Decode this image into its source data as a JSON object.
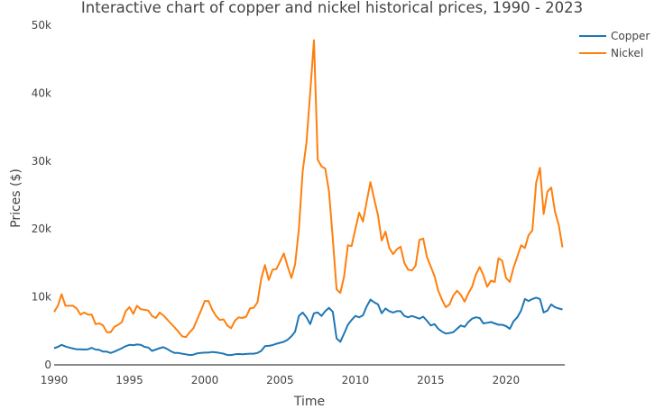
{
  "chart_data": {
    "type": "line",
    "title": "Interactive chart of copper and nickel historical prices, 1990 - 2023",
    "xlabel": "Time",
    "ylabel": "Prices ($)",
    "xlim": [
      1990,
      2023.9
    ],
    "ylim": [
      0,
      50000
    ],
    "x_ticks": [
      1990,
      1995,
      2000,
      2005,
      2010,
      2015,
      2020
    ],
    "x_tick_labels": [
      "1990",
      "1995",
      "2000",
      "2005",
      "2010",
      "2015",
      "2020"
    ],
    "y_ticks": [
      0,
      10000,
      20000,
      30000,
      40000,
      50000
    ],
    "y_tick_labels": [
      "0",
      "10k",
      "20k",
      "30k",
      "40k",
      "50k"
    ],
    "grid": false,
    "legend_position": "top-right",
    "series": [
      {
        "name": "Copper",
        "color": "#1f77b4",
        "points": [
          [
            1990.0,
            2450
          ],
          [
            1990.25,
            2650
          ],
          [
            1990.5,
            2950
          ],
          [
            1990.75,
            2700
          ],
          [
            1991.0,
            2550
          ],
          [
            1991.25,
            2400
          ],
          [
            1991.5,
            2300
          ],
          [
            1991.75,
            2300
          ],
          [
            1992.0,
            2250
          ],
          [
            1992.25,
            2300
          ],
          [
            1992.5,
            2500
          ],
          [
            1992.75,
            2250
          ],
          [
            1993.0,
            2200
          ],
          [
            1993.25,
            1950
          ],
          [
            1993.5,
            1950
          ],
          [
            1993.75,
            1750
          ],
          [
            1994.0,
            1950
          ],
          [
            1994.25,
            2200
          ],
          [
            1994.5,
            2450
          ],
          [
            1994.75,
            2750
          ],
          [
            1995.0,
            2950
          ],
          [
            1995.25,
            2900
          ],
          [
            1995.5,
            3000
          ],
          [
            1995.75,
            2950
          ],
          [
            1996.0,
            2650
          ],
          [
            1996.25,
            2550
          ],
          [
            1996.5,
            2050
          ],
          [
            1996.75,
            2250
          ],
          [
            1997.0,
            2450
          ],
          [
            1997.25,
            2600
          ],
          [
            1997.5,
            2350
          ],
          [
            1997.75,
            2000
          ],
          [
            1998.0,
            1750
          ],
          [
            1998.25,
            1750
          ],
          [
            1998.5,
            1650
          ],
          [
            1998.75,
            1550
          ],
          [
            1999.0,
            1450
          ],
          [
            1999.25,
            1500
          ],
          [
            1999.5,
            1700
          ],
          [
            1999.75,
            1750
          ],
          [
            2000.0,
            1800
          ],
          [
            2000.25,
            1800
          ],
          [
            2000.5,
            1900
          ],
          [
            2000.75,
            1850
          ],
          [
            2001.0,
            1750
          ],
          [
            2001.25,
            1650
          ],
          [
            2001.5,
            1450
          ],
          [
            2001.75,
            1450
          ],
          [
            2002.0,
            1550
          ],
          [
            2002.25,
            1600
          ],
          [
            2002.5,
            1550
          ],
          [
            2002.75,
            1600
          ],
          [
            2003.0,
            1650
          ],
          [
            2003.25,
            1650
          ],
          [
            2003.5,
            1750
          ],
          [
            2003.75,
            2050
          ],
          [
            2004.0,
            2750
          ],
          [
            2004.25,
            2800
          ],
          [
            2004.5,
            2900
          ],
          [
            2004.75,
            3100
          ],
          [
            2005.0,
            3250
          ],
          [
            2005.25,
            3400
          ],
          [
            2005.5,
            3700
          ],
          [
            2005.75,
            4200
          ],
          [
            2006.0,
            4900
          ],
          [
            2006.25,
            7200
          ],
          [
            2006.5,
            7700
          ],
          [
            2006.75,
            7000
          ],
          [
            2007.0,
            6000
          ],
          [
            2007.25,
            7600
          ],
          [
            2007.5,
            7700
          ],
          [
            2007.75,
            7200
          ],
          [
            2008.0,
            7900
          ],
          [
            2008.25,
            8400
          ],
          [
            2008.5,
            7800
          ],
          [
            2008.75,
            3900
          ],
          [
            2009.0,
            3400
          ],
          [
            2009.25,
            4600
          ],
          [
            2009.5,
            5900
          ],
          [
            2009.75,
            6600
          ],
          [
            2010.0,
            7200
          ],
          [
            2010.25,
            7000
          ],
          [
            2010.5,
            7300
          ],
          [
            2010.75,
            8600
          ],
          [
            2011.0,
            9600
          ],
          [
            2011.25,
            9200
          ],
          [
            2011.5,
            8900
          ],
          [
            2011.75,
            7600
          ],
          [
            2012.0,
            8300
          ],
          [
            2012.25,
            7900
          ],
          [
            2012.5,
            7700
          ],
          [
            2012.75,
            7900
          ],
          [
            2013.0,
            7900
          ],
          [
            2013.25,
            7200
          ],
          [
            2013.5,
            7000
          ],
          [
            2013.75,
            7200
          ],
          [
            2014.0,
            7000
          ],
          [
            2014.25,
            6800
          ],
          [
            2014.5,
            7100
          ],
          [
            2014.75,
            6500
          ],
          [
            2015.0,
            5800
          ],
          [
            2015.25,
            6000
          ],
          [
            2015.5,
            5300
          ],
          [
            2015.75,
            4900
          ],
          [
            2016.0,
            4600
          ],
          [
            2016.25,
            4700
          ],
          [
            2016.5,
            4800
          ],
          [
            2016.75,
            5300
          ],
          [
            2017.0,
            5800
          ],
          [
            2017.25,
            5600
          ],
          [
            2017.5,
            6300
          ],
          [
            2017.75,
            6800
          ],
          [
            2018.0,
            7000
          ],
          [
            2018.25,
            6900
          ],
          [
            2018.5,
            6100
          ],
          [
            2018.75,
            6200
          ],
          [
            2019.0,
            6300
          ],
          [
            2019.25,
            6100
          ],
          [
            2019.5,
            5900
          ],
          [
            2019.75,
            5900
          ],
          [
            2020.0,
            5700
          ],
          [
            2020.25,
            5300
          ],
          [
            2020.5,
            6400
          ],
          [
            2020.75,
            7000
          ],
          [
            2021.0,
            8000
          ],
          [
            2021.25,
            9700
          ],
          [
            2021.5,
            9400
          ],
          [
            2021.75,
            9700
          ],
          [
            2022.0,
            9900
          ],
          [
            2022.25,
            9700
          ],
          [
            2022.5,
            7700
          ],
          [
            2022.75,
            8000
          ],
          [
            2023.0,
            8900
          ],
          [
            2023.25,
            8500
          ],
          [
            2023.5,
            8300
          ],
          [
            2023.75,
            8150
          ]
        ]
      },
      {
        "name": "Nickel",
        "color": "#ff7f0e",
        "points": [
          [
            1990.0,
            7800
          ],
          [
            1990.25,
            8700
          ],
          [
            1990.5,
            10400
          ],
          [
            1990.75,
            8700
          ],
          [
            1991.0,
            8700
          ],
          [
            1991.25,
            8700
          ],
          [
            1991.5,
            8300
          ],
          [
            1991.75,
            7400
          ],
          [
            1992.0,
            7700
          ],
          [
            1992.25,
            7400
          ],
          [
            1992.5,
            7400
          ],
          [
            1992.75,
            6000
          ],
          [
            1993.0,
            6100
          ],
          [
            1993.25,
            5800
          ],
          [
            1993.5,
            4800
          ],
          [
            1993.75,
            4800
          ],
          [
            1994.0,
            5600
          ],
          [
            1994.25,
            5900
          ],
          [
            1994.5,
            6300
          ],
          [
            1994.75,
            7900
          ],
          [
            1995.0,
            8500
          ],
          [
            1995.25,
            7500
          ],
          [
            1995.5,
            8700
          ],
          [
            1995.75,
            8200
          ],
          [
            1996.0,
            8100
          ],
          [
            1996.25,
            8000
          ],
          [
            1996.5,
            7200
          ],
          [
            1996.75,
            6900
          ],
          [
            1997.0,
            7700
          ],
          [
            1997.25,
            7300
          ],
          [
            1997.5,
            6700
          ],
          [
            1997.75,
            6100
          ],
          [
            1998.0,
            5500
          ],
          [
            1998.25,
            4900
          ],
          [
            1998.5,
            4200
          ],
          [
            1998.75,
            4100
          ],
          [
            1999.0,
            4800
          ],
          [
            1999.25,
            5400
          ],
          [
            1999.5,
            6700
          ],
          [
            1999.75,
            8000
          ],
          [
            2000.0,
            9400
          ],
          [
            2000.25,
            9400
          ],
          [
            2000.5,
            8100
          ],
          [
            2000.75,
            7200
          ],
          [
            2001.0,
            6600
          ],
          [
            2001.25,
            6700
          ],
          [
            2001.5,
            5800
          ],
          [
            2001.75,
            5400
          ],
          [
            2002.0,
            6500
          ],
          [
            2002.25,
            7000
          ],
          [
            2002.5,
            6900
          ],
          [
            2002.75,
            7100
          ],
          [
            2003.0,
            8300
          ],
          [
            2003.25,
            8400
          ],
          [
            2003.5,
            9200
          ],
          [
            2003.75,
            12700
          ],
          [
            2004.0,
            14700
          ],
          [
            2004.25,
            12500
          ],
          [
            2004.5,
            14000
          ],
          [
            2004.75,
            14100
          ],
          [
            2005.0,
            15200
          ],
          [
            2005.25,
            16400
          ],
          [
            2005.5,
            14500
          ],
          [
            2005.75,
            12800
          ],
          [
            2006.0,
            14800
          ],
          [
            2006.25,
            20000
          ],
          [
            2006.5,
            28500
          ],
          [
            2006.75,
            32700
          ],
          [
            2007.0,
            40000
          ],
          [
            2007.25,
            47800
          ],
          [
            2007.5,
            30200
          ],
          [
            2007.75,
            29200
          ],
          [
            2008.0,
            28900
          ],
          [
            2008.25,
            25500
          ],
          [
            2008.5,
            18500
          ],
          [
            2008.75,
            11100
          ],
          [
            2009.0,
            10600
          ],
          [
            2009.25,
            13000
          ],
          [
            2009.5,
            17600
          ],
          [
            2009.75,
            17500
          ],
          [
            2010.0,
            20000
          ],
          [
            2010.25,
            22400
          ],
          [
            2010.5,
            21100
          ],
          [
            2010.75,
            24000
          ],
          [
            2011.0,
            26900
          ],
          [
            2011.25,
            24400
          ],
          [
            2011.5,
            22000
          ],
          [
            2011.75,
            18300
          ],
          [
            2012.0,
            19600
          ],
          [
            2012.25,
            17200
          ],
          [
            2012.5,
            16300
          ],
          [
            2012.75,
            17000
          ],
          [
            2013.0,
            17400
          ],
          [
            2013.25,
            15000
          ],
          [
            2013.5,
            14000
          ],
          [
            2013.75,
            13900
          ],
          [
            2014.0,
            14600
          ],
          [
            2014.25,
            18400
          ],
          [
            2014.5,
            18600
          ],
          [
            2014.75,
            15900
          ],
          [
            2015.0,
            14500
          ],
          [
            2015.25,
            13100
          ],
          [
            2015.5,
            10900
          ],
          [
            2015.75,
            9600
          ],
          [
            2016.0,
            8500
          ],
          [
            2016.25,
            8900
          ],
          [
            2016.5,
            10200
          ],
          [
            2016.75,
            10900
          ],
          [
            2017.0,
            10300
          ],
          [
            2017.25,
            9300
          ],
          [
            2017.5,
            10500
          ],
          [
            2017.75,
            11500
          ],
          [
            2018.0,
            13300
          ],
          [
            2018.25,
            14400
          ],
          [
            2018.5,
            13200
          ],
          [
            2018.75,
            11500
          ],
          [
            2019.0,
            12400
          ],
          [
            2019.25,
            12200
          ],
          [
            2019.5,
            15700
          ],
          [
            2019.75,
            15300
          ],
          [
            2020.0,
            12800
          ],
          [
            2020.25,
            12200
          ],
          [
            2020.5,
            14300
          ],
          [
            2020.75,
            15900
          ],
          [
            2021.0,
            17600
          ],
          [
            2021.25,
            17200
          ],
          [
            2021.5,
            19100
          ],
          [
            2021.75,
            19800
          ],
          [
            2022.0,
            26800
          ],
          [
            2022.25,
            29000
          ],
          [
            2022.5,
            22200
          ],
          [
            2022.75,
            25500
          ],
          [
            2023.0,
            26100
          ],
          [
            2023.25,
            22600
          ],
          [
            2023.5,
            20600
          ],
          [
            2023.75,
            17300
          ]
        ]
      }
    ]
  }
}
